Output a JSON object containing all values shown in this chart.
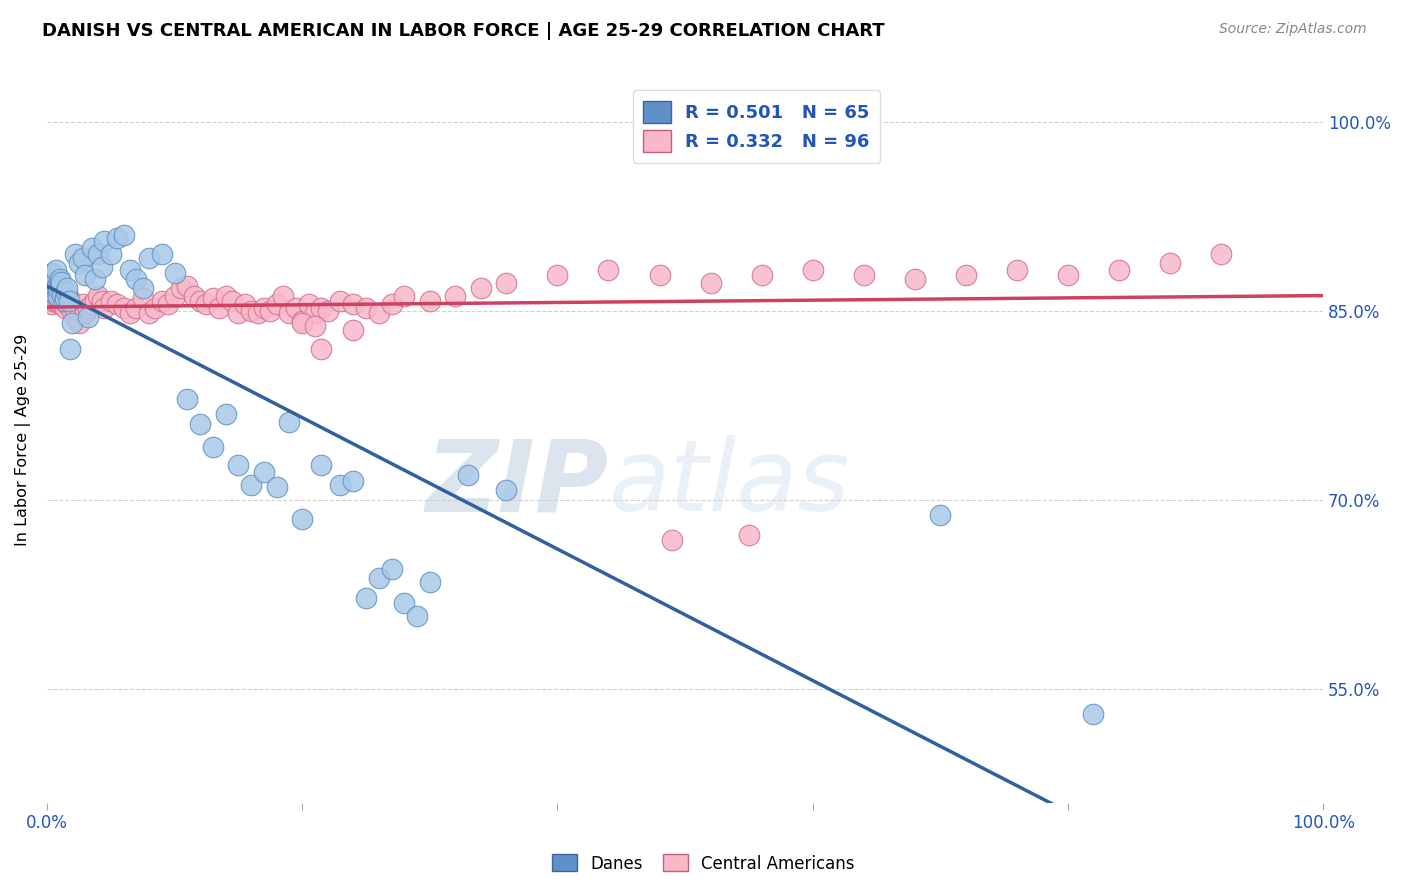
{
  "title": "DANISH VS CENTRAL AMERICAN IN LABOR FORCE | AGE 25-29 CORRELATION CHART",
  "source": "Source: ZipAtlas.com",
  "ylabel": "In Labor Force | Age 25-29",
  "ytick_labels": [
    "100.0%",
    "85.0%",
    "70.0%",
    "55.0%"
  ],
  "ytick_values": [
    1.0,
    0.85,
    0.7,
    0.55
  ],
  "xlim": [
    0.0,
    1.0
  ],
  "ylim": [
    0.46,
    1.035
  ],
  "danes_R": 0.501,
  "danes_N": 65,
  "central_R": 0.332,
  "central_N": 96,
  "danes_color": "#a8c8e8",
  "danes_edge": "#6090c0",
  "central_color": "#f8b8c8",
  "central_edge": "#d07090",
  "danes_line_color": "#3060a0",
  "central_line_color": "#d04060",
  "legend_color_blue": "#6090c8",
  "legend_color_pink": "#f8b8c8",
  "watermark_zip": "ZIP",
  "watermark_atlas": "atlas",
  "danes_x": [
    0.003,
    0.004,
    0.004,
    0.005,
    0.005,
    0.006,
    0.006,
    0.007,
    0.007,
    0.008,
    0.009,
    0.009,
    0.01,
    0.01,
    0.011,
    0.012,
    0.013,
    0.014,
    0.015,
    0.016,
    0.017,
    0.018,
    0.02,
    0.022,
    0.025,
    0.028,
    0.03,
    0.032,
    0.035,
    0.038,
    0.04,
    0.043,
    0.045,
    0.05,
    0.055,
    0.06,
    0.065,
    0.07,
    0.075,
    0.08,
    0.09,
    0.1,
    0.11,
    0.12,
    0.13,
    0.14,
    0.15,
    0.16,
    0.17,
    0.18,
    0.19,
    0.2,
    0.215,
    0.23,
    0.24,
    0.25,
    0.26,
    0.27,
    0.28,
    0.29,
    0.3,
    0.33,
    0.36,
    0.7,
    0.82
  ],
  "danes_y": [
    0.875,
    0.872,
    0.88,
    0.865,
    0.878,
    0.87,
    0.873,
    0.882,
    0.868,
    0.87,
    0.862,
    0.868,
    0.875,
    0.87,
    0.873,
    0.862,
    0.858,
    0.86,
    0.865,
    0.868,
    0.858,
    0.82,
    0.84,
    0.895,
    0.888,
    0.892,
    0.878,
    0.845,
    0.9,
    0.875,
    0.895,
    0.885,
    0.905,
    0.895,
    0.908,
    0.91,
    0.882,
    0.875,
    0.868,
    0.892,
    0.895,
    0.88,
    0.78,
    0.76,
    0.742,
    0.768,
    0.728,
    0.712,
    0.722,
    0.71,
    0.762,
    0.685,
    0.728,
    0.712,
    0.715,
    0.622,
    0.638,
    0.645,
    0.618,
    0.608,
    0.635,
    0.72,
    0.708,
    0.688,
    0.53
  ],
  "central_x": [
    0.003,
    0.004,
    0.005,
    0.005,
    0.006,
    0.006,
    0.007,
    0.007,
    0.008,
    0.009,
    0.01,
    0.01,
    0.011,
    0.012,
    0.013,
    0.014,
    0.015,
    0.016,
    0.017,
    0.018,
    0.02,
    0.022,
    0.025,
    0.028,
    0.03,
    0.032,
    0.035,
    0.038,
    0.04,
    0.043,
    0.045,
    0.05,
    0.055,
    0.06,
    0.065,
    0.07,
    0.075,
    0.08,
    0.085,
    0.09,
    0.095,
    0.1,
    0.105,
    0.11,
    0.115,
    0.12,
    0.125,
    0.13,
    0.135,
    0.14,
    0.145,
    0.15,
    0.155,
    0.16,
    0.165,
    0.17,
    0.175,
    0.18,
    0.185,
    0.19,
    0.195,
    0.2,
    0.205,
    0.21,
    0.215,
    0.22,
    0.23,
    0.24,
    0.25,
    0.26,
    0.27,
    0.28,
    0.3,
    0.32,
    0.34,
    0.36,
    0.4,
    0.44,
    0.48,
    0.52,
    0.56,
    0.6,
    0.64,
    0.68,
    0.72,
    0.76,
    0.8,
    0.84,
    0.88,
    0.92,
    0.2,
    0.21,
    0.215,
    0.24,
    0.49,
    0.55
  ],
  "central_y": [
    0.862,
    0.855,
    0.858,
    0.865,
    0.868,
    0.86,
    0.862,
    0.858,
    0.86,
    0.862,
    0.855,
    0.862,
    0.858,
    0.855,
    0.858,
    0.852,
    0.858,
    0.855,
    0.86,
    0.858,
    0.85,
    0.845,
    0.84,
    0.855,
    0.848,
    0.852,
    0.855,
    0.858,
    0.862,
    0.858,
    0.852,
    0.858,
    0.855,
    0.852,
    0.848,
    0.852,
    0.86,
    0.848,
    0.852,
    0.858,
    0.855,
    0.862,
    0.868,
    0.87,
    0.862,
    0.858,
    0.855,
    0.86,
    0.852,
    0.862,
    0.858,
    0.848,
    0.855,
    0.85,
    0.848,
    0.852,
    0.85,
    0.855,
    0.862,
    0.848,
    0.852,
    0.842,
    0.855,
    0.848,
    0.852,
    0.85,
    0.858,
    0.855,
    0.852,
    0.848,
    0.855,
    0.862,
    0.858,
    0.862,
    0.868,
    0.872,
    0.878,
    0.882,
    0.878,
    0.872,
    0.878,
    0.882,
    0.878,
    0.875,
    0.878,
    0.882,
    0.878,
    0.882,
    0.888,
    0.895,
    0.84,
    0.838,
    0.82,
    0.835,
    0.668,
    0.672
  ]
}
